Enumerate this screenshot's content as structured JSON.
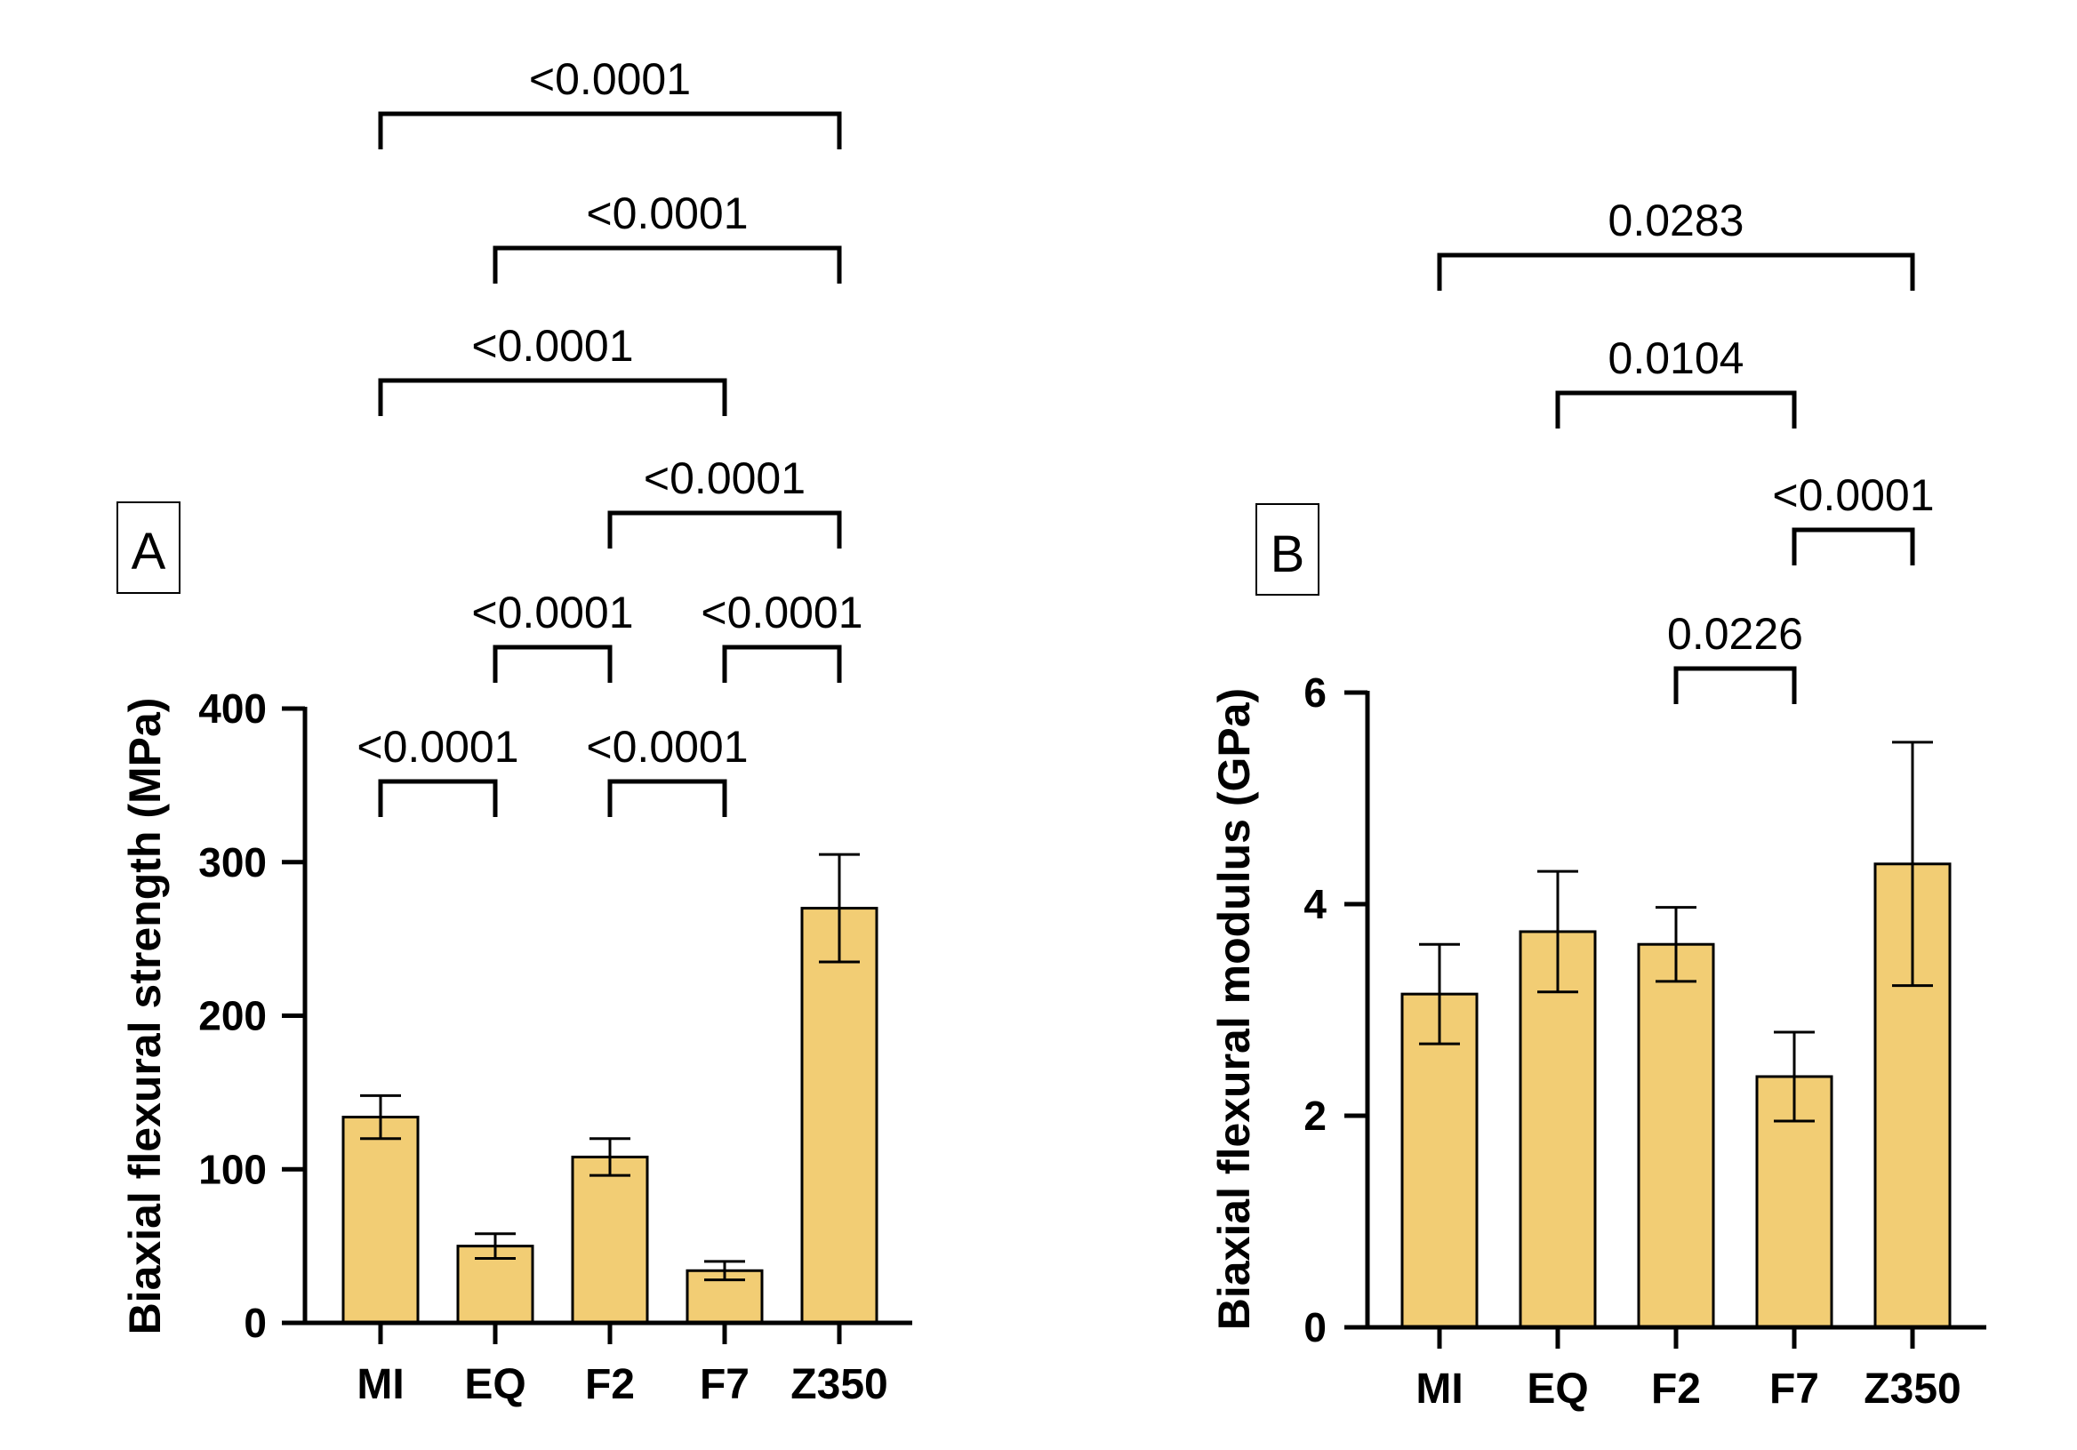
{
  "colors": {
    "bar_fill": "#F2CD74",
    "stroke": "#000000",
    "background": "#FFFFFF"
  },
  "chart_data": [
    {
      "type": "bar",
      "panel": "A",
      "categories": [
        "MI",
        "EQ",
        "F2",
        "F7",
        "Z350"
      ],
      "values": [
        134,
        50,
        108,
        34,
        270
      ],
      "error": [
        14,
        8,
        12,
        6,
        35
      ],
      "ylabel": "Biaxial flexural strength (MPa)",
      "ylim": [
        0,
        400
      ],
      "yticks": [
        0,
        100,
        200,
        300,
        400
      ],
      "comparisons": [
        {
          "from": 0,
          "to": 4,
          "label": "<0.0001"
        },
        {
          "from": 1,
          "to": 4,
          "label": "<0.0001"
        },
        {
          "from": 0,
          "to": 3,
          "label": "<0.0001"
        },
        {
          "from": 2,
          "to": 4,
          "label": "<0.0001"
        },
        {
          "from": 1,
          "to": 2,
          "label": "<0.0001"
        },
        {
          "from": 3,
          "to": 4,
          "label": "<0.0001"
        },
        {
          "from": 0,
          "to": 1,
          "label": "<0.0001"
        },
        {
          "from": 2,
          "to": 3,
          "label": "<0.0001"
        }
      ]
    },
    {
      "type": "bar",
      "panel": "B",
      "categories": [
        "MI",
        "EQ",
        "F2",
        "F7",
        "Z350"
      ],
      "values": [
        3.15,
        3.74,
        3.62,
        2.37,
        4.38
      ],
      "error": [
        0.47,
        0.57,
        0.35,
        0.42,
        1.15
      ],
      "ylabel": "Biaxial flexural modulus (GPa)",
      "ylim": [
        0,
        6
      ],
      "yticks": [
        0,
        2,
        4,
        6
      ],
      "comparisons": [
        {
          "from": 0,
          "to": 4,
          "label": "0.0283"
        },
        {
          "from": 1,
          "to": 3,
          "label": "0.0104"
        },
        {
          "from": 3,
          "to": 4,
          "label": "<0.0001"
        },
        {
          "from": 2,
          "to": 3,
          "label": "0.0226"
        }
      ]
    }
  ]
}
